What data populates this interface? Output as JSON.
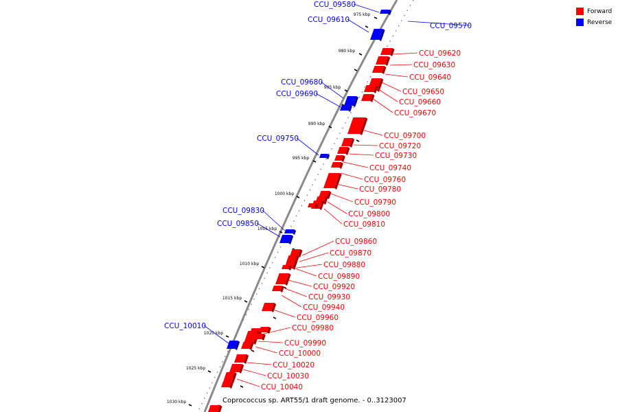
{
  "legend": {
    "forward_label": "Forward",
    "reverse_label": "Reverse",
    "forward_color": "#ff0000",
    "reverse_color": "#0000ff"
  },
  "caption": "Coprococcus sp. ART55/1 draft genome. - 0..3123007",
  "ruler": [
    "975 kbp",
    "980 kbp",
    "985 kbp",
    "990 kbp",
    "995 kbp",
    "1000 kbp",
    "1005 kbp",
    "1010 kbp",
    "1015 kbp",
    "1020 kbp",
    "1025 kbp",
    "1030 kbp"
  ],
  "genes": [
    {
      "id": "CCU_09570",
      "strand": "reverse"
    },
    {
      "id": "CCU_09580",
      "strand": "reverse"
    },
    {
      "id": "CCU_09610",
      "strand": "reverse"
    },
    {
      "id": "CCU_09620",
      "strand": "forward"
    },
    {
      "id": "CCU_09630",
      "strand": "forward"
    },
    {
      "id": "CCU_09640",
      "strand": "forward"
    },
    {
      "id": "CCU_09650",
      "strand": "forward"
    },
    {
      "id": "CCU_09660",
      "strand": "forward"
    },
    {
      "id": "CCU_09670",
      "strand": "forward"
    },
    {
      "id": "CCU_09680",
      "strand": "reverse"
    },
    {
      "id": "CCU_09690",
      "strand": "reverse"
    },
    {
      "id": "CCU_09700",
      "strand": "forward"
    },
    {
      "id": "CCU_09720",
      "strand": "forward"
    },
    {
      "id": "CCU_09730",
      "strand": "forward"
    },
    {
      "id": "CCU_09740",
      "strand": "forward"
    },
    {
      "id": "CCU_09750",
      "strand": "reverse"
    },
    {
      "id": "CCU_09760",
      "strand": "forward"
    },
    {
      "id": "CCU_09780",
      "strand": "forward"
    },
    {
      "id": "CCU_09790",
      "strand": "forward"
    },
    {
      "id": "CCU_09800",
      "strand": "forward"
    },
    {
      "id": "CCU_09810",
      "strand": "forward"
    },
    {
      "id": "CCU_09830",
      "strand": "reverse"
    },
    {
      "id": "CCU_09850",
      "strand": "reverse"
    },
    {
      "id": "CCU_09860",
      "strand": "forward"
    },
    {
      "id": "CCU_09870",
      "strand": "forward"
    },
    {
      "id": "CCU_09880",
      "strand": "forward"
    },
    {
      "id": "CCU_09890",
      "strand": "forward"
    },
    {
      "id": "CCU_09920",
      "strand": "forward"
    },
    {
      "id": "CCU_09930",
      "strand": "forward"
    },
    {
      "id": "CCU_09940",
      "strand": "forward"
    },
    {
      "id": "CCU_09960",
      "strand": "forward"
    },
    {
      "id": "CCU_09980",
      "strand": "forward"
    },
    {
      "id": "CCU_09990",
      "strand": "forward"
    },
    {
      "id": "CCU_10000",
      "strand": "forward"
    },
    {
      "id": "CCU_10010",
      "strand": "reverse"
    },
    {
      "id": "CCU_10020",
      "strand": "forward"
    },
    {
      "id": "CCU_10030",
      "strand": "forward"
    },
    {
      "id": "CCU_10040",
      "strand": "forward"
    }
  ]
}
